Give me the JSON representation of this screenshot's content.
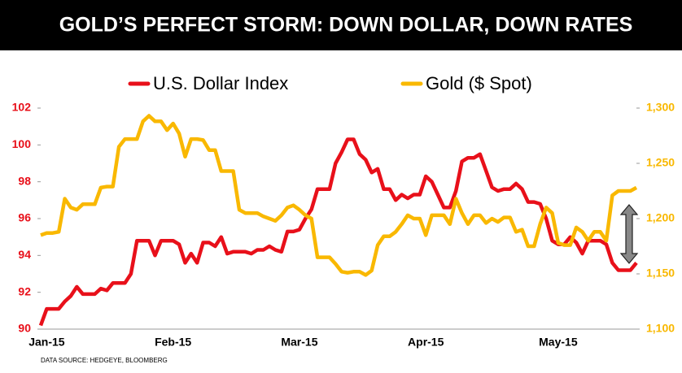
{
  "chart_data": {
    "type": "line",
    "title": "GOLD’S PERFECT STORM: DOWN DOLLAR, DOWN RATES",
    "source": "DATA SOURCE: HEDGEYE, BLOOMBERG",
    "categories": [
      null,
      "Jan-15",
      null,
      null,
      null,
      null,
      null,
      null,
      null,
      null,
      null,
      null,
      null,
      null,
      null,
      null,
      null,
      null,
      null,
      null,
      null,
      null,
      "Feb-15",
      null,
      null,
      null,
      null,
      null,
      null,
      null,
      null,
      null,
      null,
      null,
      null,
      null,
      null,
      null,
      null,
      null,
      null,
      null,
      null,
      "Mar-15",
      null,
      null,
      null,
      null,
      null,
      null,
      null,
      null,
      null,
      null,
      null,
      null,
      null,
      null,
      null,
      null,
      null,
      null,
      null,
      null,
      "Apr-15",
      null,
      null,
      null,
      null,
      null,
      null,
      null,
      null,
      null,
      null,
      null,
      null,
      null,
      null,
      null,
      null,
      null,
      null,
      null,
      null,
      null,
      "May-15",
      null,
      null,
      null,
      null,
      null,
      null,
      null,
      null,
      null,
      null,
      null,
      null,
      null
    ],
    "series": [
      {
        "name": "U.S. Dollar Index",
        "color": "#e8101a",
        "axis": "y",
        "values": [
          90.2,
          91.1,
          91.1,
          91.1,
          91.5,
          91.8,
          92.3,
          91.9,
          91.9,
          91.9,
          92.2,
          92.1,
          92.5,
          92.5,
          92.5,
          93.0,
          94.8,
          94.8,
          94.8,
          94.0,
          94.8,
          94.8,
          94.8,
          94.6,
          93.6,
          94.1,
          93.6,
          94.7,
          94.7,
          94.5,
          95.0,
          94.1,
          94.2,
          94.2,
          94.2,
          94.1,
          94.3,
          94.3,
          94.5,
          94.3,
          94.2,
          95.3,
          95.3,
          95.4,
          96.0,
          96.5,
          97.6,
          97.6,
          97.6,
          99.0,
          99.6,
          100.3,
          100.3,
          99.5,
          99.2,
          98.5,
          98.7,
          97.6,
          97.6,
          97.0,
          97.3,
          97.1,
          97.3,
          97.3,
          98.3,
          98.0,
          97.3,
          96.6,
          96.6,
          97.5,
          99.1,
          99.3,
          99.3,
          99.5,
          98.6,
          97.7,
          97.5,
          97.6,
          97.6,
          97.9,
          97.6,
          96.9,
          96.9,
          96.8,
          96.0,
          94.8,
          94.6,
          94.6,
          95.0,
          94.7,
          94.1,
          94.8,
          94.8,
          94.8,
          94.6,
          93.6,
          93.2,
          93.2,
          93.2,
          93.6
        ]
      },
      {
        "name": "Gold ($ Spot)",
        "color": "#f9b800",
        "axis": "y2",
        "values": [
          1185,
          1187,
          1187,
          1188,
          1218,
          1210,
          1208,
          1213,
          1213,
          1213,
          1228,
          1229,
          1229,
          1265,
          1272,
          1272,
          1272,
          1288,
          1293,
          1288,
          1288,
          1280,
          1286,
          1277,
          1256,
          1272,
          1272,
          1271,
          1262,
          1262,
          1243,
          1243,
          1243,
          1208,
          1205,
          1205,
          1205,
          1202,
          1200,
          1198,
          1203,
          1210,
          1212,
          1208,
          1203,
          1200,
          1165,
          1165,
          1165,
          1159,
          1152,
          1151,
          1152,
          1152,
          1149,
          1153,
          1176,
          1184,
          1184,
          1188,
          1195,
          1203,
          1200,
          1200,
          1185,
          1203,
          1203,
          1203,
          1195,
          1218,
          1205,
          1195,
          1203,
          1203,
          1196,
          1200,
          1197,
          1201,
          1201,
          1188,
          1190,
          1175,
          1175,
          1195,
          1210,
          1205,
          1178,
          1176,
          1176,
          1192,
          1188,
          1180,
          1188,
          1188,
          1180,
          1221,
          1225,
          1225,
          1225,
          1228
        ]
      }
    ],
    "ylim": [
      90,
      102
    ],
    "yticks": [
      90,
      92,
      94,
      96,
      98,
      100,
      102
    ],
    "y2lim": [
      1100,
      1300
    ],
    "y2ticks": [
      {
        "value": 1100,
        "label": "1,100"
      },
      {
        "value": 1150,
        "label": "1,150"
      },
      {
        "value": 1200,
        "label": "1,200"
      },
      {
        "value": 1250,
        "label": "1,250"
      },
      {
        "value": 1300,
        "label": "1,300"
      }
    ],
    "legend": "top",
    "grid": false
  }
}
